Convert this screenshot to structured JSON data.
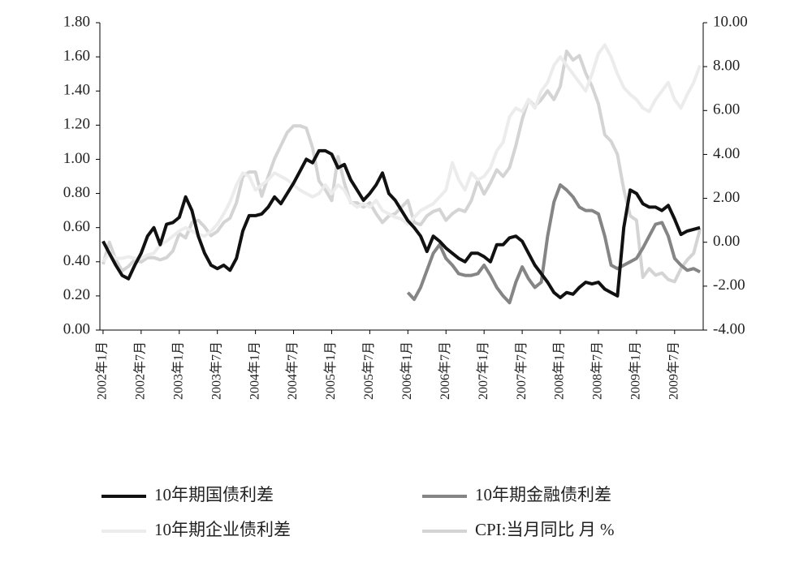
{
  "chart_data": {
    "type": "line",
    "categories": [
      "2002年1月",
      null,
      null,
      null,
      null,
      null,
      "2002年7月",
      null,
      null,
      null,
      null,
      null,
      "2003年1月",
      null,
      null,
      null,
      null,
      null,
      "2003年7月",
      null,
      null,
      null,
      null,
      null,
      "2004年1月",
      null,
      null,
      null,
      null,
      null,
      "2004年7月",
      null,
      null,
      null,
      null,
      null,
      "2005年1月",
      null,
      null,
      null,
      null,
      null,
      "2005年7月",
      null,
      null,
      null,
      null,
      null,
      "2006年1月",
      null,
      null,
      null,
      null,
      null,
      "2006年7月",
      null,
      null,
      null,
      null,
      null,
      "2007年1月",
      null,
      null,
      null,
      null,
      null,
      "2007年7月",
      null,
      null,
      null,
      null,
      null,
      "2008年1月",
      null,
      null,
      null,
      null,
      null,
      "2008年7月",
      null,
      null,
      null,
      null,
      null,
      "2009年1月",
      null,
      null,
      null,
      null,
      null,
      "2009年7月",
      null,
      null,
      null,
      null
    ],
    "ylim": [
      0,
      1.8
    ],
    "yticks": [
      {
        "value": 0,
        "label": "0.00"
      },
      {
        "value": 0.2,
        "label": "0.20"
      },
      {
        "value": 0.4,
        "label": "0.40"
      },
      {
        "value": 0.6,
        "label": "0.60"
      },
      {
        "value": 0.8,
        "label": "0.80"
      },
      {
        "value": 1.0,
        "label": "1.00"
      },
      {
        "value": 1.2,
        "label": "1.20"
      },
      {
        "value": 1.4,
        "label": "1.40"
      },
      {
        "value": 1.6,
        "label": "1.60"
      },
      {
        "value": 1.8,
        "label": "1.80"
      }
    ],
    "y2lim": [
      -4,
      10
    ],
    "y2ticks": [
      {
        "value": -4,
        "label": "-4.00"
      },
      {
        "value": -2,
        "label": "-2.00"
      },
      {
        "value": 0,
        "label": "0.00"
      },
      {
        "value": 2,
        "label": "2.00"
      },
      {
        "value": 4,
        "label": "4.00"
      },
      {
        "value": 6,
        "label": "6.00"
      },
      {
        "value": 8,
        "label": "8.00"
      },
      {
        "value": 10,
        "label": "10.00"
      }
    ],
    "grid": false,
    "series": [
      {
        "name": "10年期国债利差",
        "color": "#111111",
        "values": [
          0.52,
          0.45,
          0.38,
          0.32,
          0.3,
          0.38,
          0.45,
          0.55,
          0.6,
          0.5,
          0.62,
          0.63,
          0.66,
          0.78,
          0.7,
          0.55,
          0.45,
          0.38,
          0.36,
          0.38,
          0.35,
          0.42,
          0.58,
          0.67,
          0.67,
          0.68,
          0.72,
          0.78,
          0.74,
          0.8,
          0.86,
          0.93,
          1.0,
          0.98,
          1.05,
          1.05,
          1.03,
          0.95,
          0.97,
          0.88,
          0.82,
          0.76,
          0.8,
          0.85,
          0.92,
          0.8,
          0.76,
          0.7,
          0.64,
          0.6,
          0.55,
          0.46,
          0.55,
          0.52,
          0.48,
          0.45,
          0.42,
          0.4,
          0.45,
          0.45,
          0.43,
          0.4,
          0.5,
          0.5,
          0.54,
          0.55,
          0.52,
          0.45,
          0.38,
          0.33,
          0.28,
          0.22,
          0.19,
          0.22,
          0.21,
          0.25,
          0.28,
          0.27,
          0.28,
          0.24,
          0.22,
          0.2,
          0.6,
          0.82,
          0.8,
          0.74,
          0.72,
          0.72,
          0.7,
          0.73,
          0.65,
          0.56,
          0.58,
          0.59,
          0.6
        ]
      },
      {
        "name": "10年期金融债利差",
        "color": "#858585",
        "values": [
          null,
          null,
          null,
          null,
          null,
          null,
          null,
          null,
          null,
          null,
          null,
          null,
          null,
          null,
          null,
          null,
          null,
          null,
          null,
          null,
          null,
          null,
          null,
          null,
          null,
          null,
          null,
          null,
          null,
          null,
          null,
          null,
          null,
          null,
          null,
          null,
          null,
          null,
          null,
          null,
          null,
          null,
          null,
          null,
          null,
          null,
          null,
          null,
          0.22,
          0.18,
          0.25,
          0.35,
          0.45,
          0.5,
          0.42,
          0.38,
          0.33,
          0.32,
          0.32,
          0.33,
          0.38,
          0.32,
          0.25,
          0.2,
          0.16,
          0.28,
          0.37,
          0.3,
          0.25,
          0.28,
          0.55,
          0.75,
          0.85,
          0.82,
          0.78,
          0.72,
          0.7,
          0.7,
          0.68,
          0.55,
          0.38,
          0.36,
          0.38,
          0.4,
          0.42,
          0.48,
          0.55,
          0.62,
          0.63,
          0.55,
          0.42,
          0.38,
          0.35,
          0.36,
          0.34
        ]
      },
      {
        "name": "10年期企业债利差",
        "color": "#ececec",
        "values": [
          0.4,
          0.45,
          0.42,
          0.42,
          0.43,
          0.42,
          0.42,
          0.44,
          0.45,
          0.5,
          0.52,
          0.55,
          0.58,
          0.6,
          0.58,
          0.56,
          0.55,
          0.58,
          0.62,
          0.68,
          0.75,
          0.85,
          0.92,
          0.9,
          0.82,
          0.85,
          0.88,
          0.92,
          0.9,
          0.88,
          0.85,
          0.82,
          0.8,
          0.78,
          0.8,
          0.85,
          0.8,
          0.85,
          0.82,
          0.75,
          0.72,
          0.74,
          0.72,
          0.76,
          0.7,
          0.68,
          0.66,
          0.65,
          0.62,
          0.66,
          0.7,
          0.72,
          0.74,
          0.78,
          0.82,
          0.98,
          0.88,
          0.82,
          0.92,
          0.88,
          0.9,
          0.95,
          1.05,
          1.1,
          1.25,
          1.3,
          1.28,
          1.35,
          1.3,
          1.4,
          1.45,
          1.55,
          1.6,
          1.55,
          1.5,
          1.45,
          1.4,
          1.5,
          1.62,
          1.67,
          1.6,
          1.5,
          1.42,
          1.38,
          1.35,
          1.3,
          1.28,
          1.35,
          1.4,
          1.45,
          1.35,
          1.3,
          1.38,
          1.45,
          1.55
        ]
      },
      {
        "name": "CPI:当月同比 月 %",
        "color": "#d4d4d4",
        "axis": "y2",
        "values": [
          -1.0,
          0.0,
          -0.8,
          -1.3,
          -1.1,
          -0.8,
          -0.9,
          -0.7,
          -0.7,
          -0.8,
          -0.7,
          -0.4,
          0.4,
          0.2,
          0.9,
          1.0,
          0.7,
          0.3,
          0.5,
          0.9,
          1.1,
          1.8,
          3.0,
          3.2,
          3.2,
          2.1,
          3.0,
          3.8,
          4.4,
          5.0,
          5.3,
          5.3,
          5.2,
          4.3,
          2.8,
          2.4,
          1.9,
          3.9,
          2.7,
          1.8,
          1.8,
          1.6,
          1.8,
          1.3,
          0.9,
          1.2,
          1.3,
          1.6,
          1.9,
          0.9,
          0.8,
          1.2,
          1.4,
          1.5,
          1.0,
          1.3,
          1.5,
          1.4,
          1.9,
          2.8,
          2.2,
          2.7,
          3.3,
          3.0,
          3.4,
          4.4,
          5.6,
          6.5,
          6.2,
          6.5,
          6.9,
          6.5,
          7.1,
          8.7,
          8.3,
          8.5,
          7.7,
          7.1,
          6.3,
          4.9,
          4.6,
          4.0,
          2.4,
          1.2,
          1.0,
          -1.6,
          -1.2,
          -1.5,
          -1.4,
          -1.7,
          -1.8,
          -1.2,
          -0.8,
          -0.5,
          0.6
        ]
      }
    ]
  }
}
